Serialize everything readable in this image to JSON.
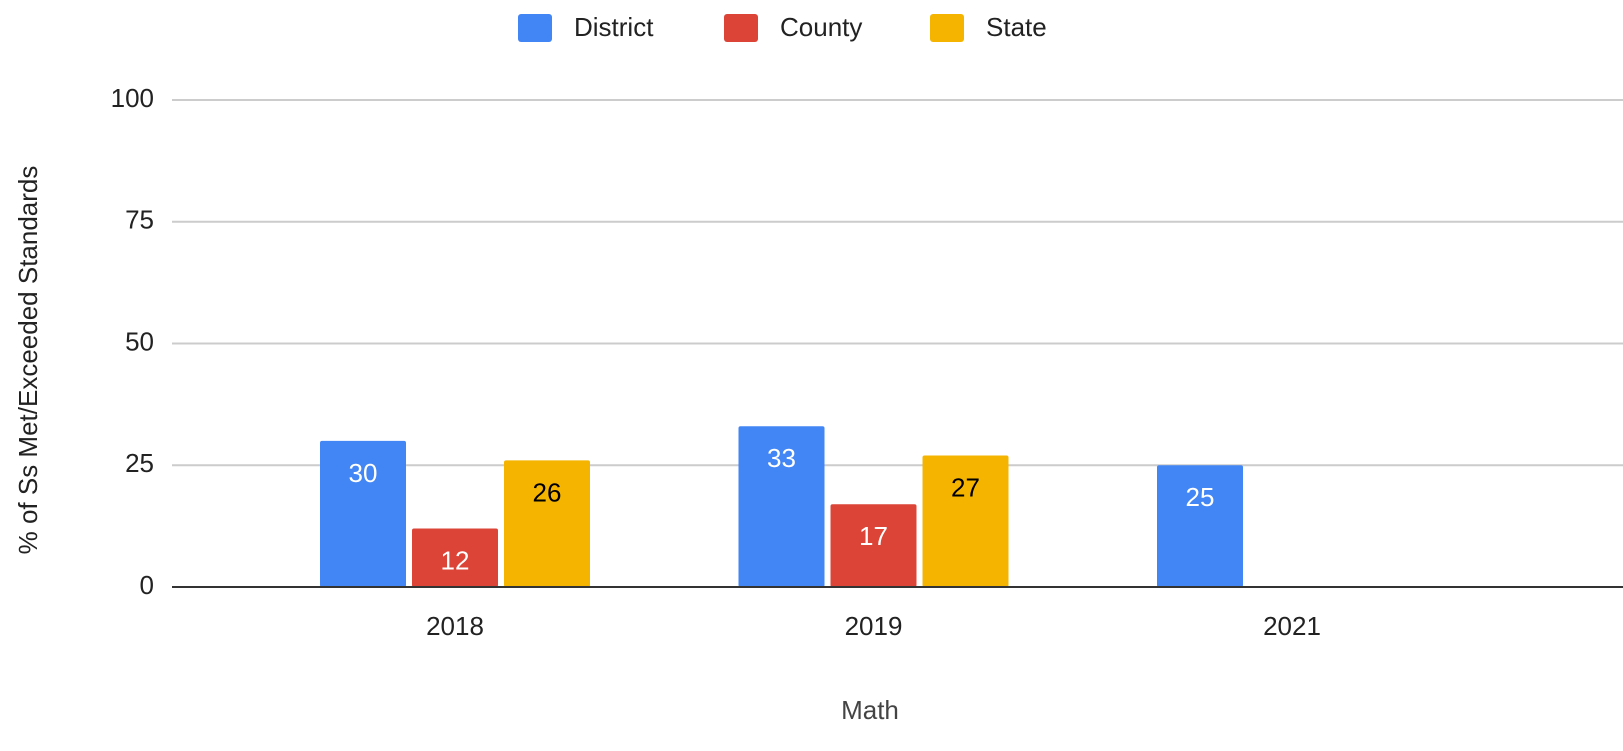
{
  "chart_data": {
    "type": "bar",
    "x_label": "Math",
    "y_label": "% of Ss Met/Exceeded Standards",
    "categories": [
      "2018",
      "2019",
      "2021"
    ],
    "series": [
      {
        "name": "District",
        "color": "#4285f4",
        "label_color": "#ffffff",
        "values": [
          30,
          33,
          25
        ]
      },
      {
        "name": "County",
        "color": "#db4437",
        "label_color": "#ffffff",
        "values": [
          12,
          17,
          null
        ]
      },
      {
        "name": "State",
        "color": "#f4b400",
        "label_color": "#000000",
        "values": [
          26,
          27,
          null
        ]
      }
    ],
    "ylim": [
      0,
      100
    ],
    "yticks": [
      0,
      25,
      50,
      75,
      100
    ],
    "grid": true,
    "legend": "top",
    "data_labels": true
  }
}
